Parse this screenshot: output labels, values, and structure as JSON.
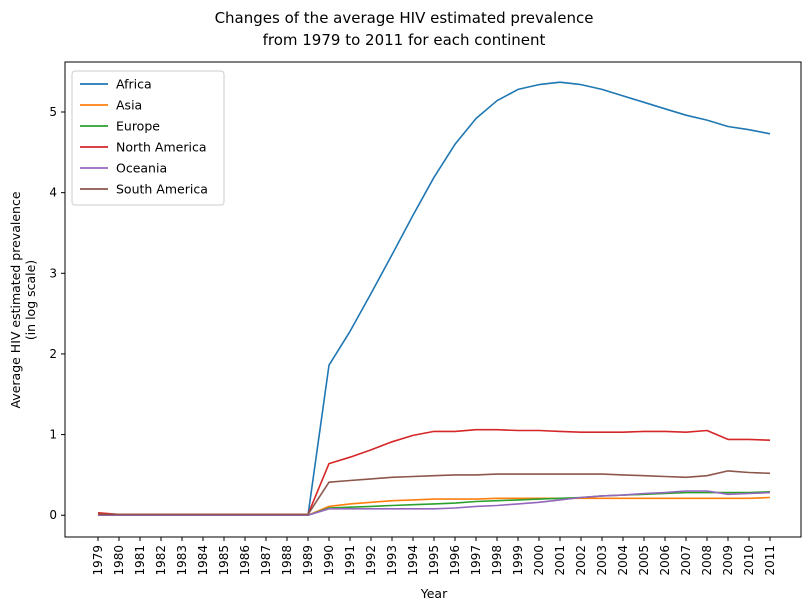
{
  "chart_data": {
    "type": "line",
    "title": [
      "Changes of the average HIV estimated prevalence",
      "from 1979 to 2011 for each continent"
    ],
    "xlabel": "Year",
    "ylabel": [
      "Average HIV estimated prevalence",
      "(in log scale)"
    ],
    "ylim": [
      -0.27,
      5.62
    ],
    "yticks": [
      0,
      1,
      2,
      3,
      4,
      5
    ],
    "legend_placement": "top-left",
    "grid": false,
    "categories": [
      "1979",
      "1980",
      "1981",
      "1982",
      "1983",
      "1984",
      "1985",
      "1986",
      "1987",
      "1988",
      "1989",
      "1990",
      "1991",
      "1992",
      "1993",
      "1994",
      "1995",
      "1996",
      "1997",
      "1998",
      "1999",
      "2000",
      "2001",
      "2002",
      "2003",
      "2004",
      "2005",
      "2006",
      "2007",
      "2008",
      "2009",
      "2010",
      "2011"
    ],
    "series": [
      {
        "name": "Africa",
        "color": "#1f77b4",
        "values": [
          0.0,
          0.0,
          0.0,
          0.0,
          0.0,
          0.0,
          0.0,
          0.0,
          0.0,
          0.0,
          0.0,
          1.86,
          2.28,
          2.75,
          3.23,
          3.72,
          4.19,
          4.6,
          4.92,
          5.14,
          5.28,
          5.34,
          5.37,
          5.34,
          5.28,
          5.2,
          5.12,
          5.04,
          4.96,
          4.9,
          4.82,
          4.78,
          4.73
        ]
      },
      {
        "name": "Asia",
        "color": "#ff7f0e",
        "values": [
          0.01,
          0.0,
          0.0,
          0.0,
          0.0,
          0.0,
          0.0,
          0.0,
          0.0,
          0.0,
          0.0,
          0.11,
          0.14,
          0.16,
          0.18,
          0.19,
          0.2,
          0.2,
          0.2,
          0.21,
          0.21,
          0.21,
          0.21,
          0.21,
          0.21,
          0.21,
          0.21,
          0.21,
          0.21,
          0.21,
          0.21,
          0.21,
          0.22
        ]
      },
      {
        "name": "Europe",
        "color": "#2ca02c",
        "values": [
          0.0,
          0.0,
          0.0,
          0.0,
          0.0,
          0.0,
          0.0,
          0.0,
          0.0,
          0.0,
          0.0,
          0.09,
          0.1,
          0.11,
          0.12,
          0.13,
          0.14,
          0.15,
          0.17,
          0.18,
          0.19,
          0.2,
          0.21,
          0.22,
          0.24,
          0.25,
          0.26,
          0.27,
          0.28,
          0.28,
          0.28,
          0.28,
          0.29
        ]
      },
      {
        "name": "North America",
        "color": "#d62728",
        "values": [
          0.03,
          0.01,
          0.01,
          0.01,
          0.01,
          0.01,
          0.01,
          0.01,
          0.01,
          0.01,
          0.01,
          0.64,
          0.72,
          0.81,
          0.91,
          0.99,
          1.04,
          1.04,
          1.06,
          1.06,
          1.05,
          1.05,
          1.04,
          1.03,
          1.03,
          1.03,
          1.04,
          1.04,
          1.03,
          1.05,
          0.94,
          0.94,
          0.93
        ]
      },
      {
        "name": "Oceania",
        "color": "#9467bd",
        "values": [
          0.0,
          0.0,
          0.0,
          0.0,
          0.0,
          0.0,
          0.0,
          0.0,
          0.0,
          0.0,
          0.0,
          0.08,
          0.08,
          0.08,
          0.08,
          0.08,
          0.08,
          0.09,
          0.11,
          0.12,
          0.14,
          0.16,
          0.19,
          0.22,
          0.24,
          0.25,
          0.27,
          0.28,
          0.3,
          0.3,
          0.26,
          0.27,
          0.28
        ]
      },
      {
        "name": "South America",
        "color": "#8c564b",
        "values": [
          0.01,
          0.01,
          0.01,
          0.01,
          0.01,
          0.01,
          0.01,
          0.01,
          0.01,
          0.01,
          0.01,
          0.41,
          0.43,
          0.45,
          0.47,
          0.48,
          0.49,
          0.5,
          0.5,
          0.51,
          0.51,
          0.51,
          0.51,
          0.51,
          0.51,
          0.5,
          0.49,
          0.48,
          0.47,
          0.49,
          0.55,
          0.53,
          0.52
        ]
      }
    ]
  }
}
